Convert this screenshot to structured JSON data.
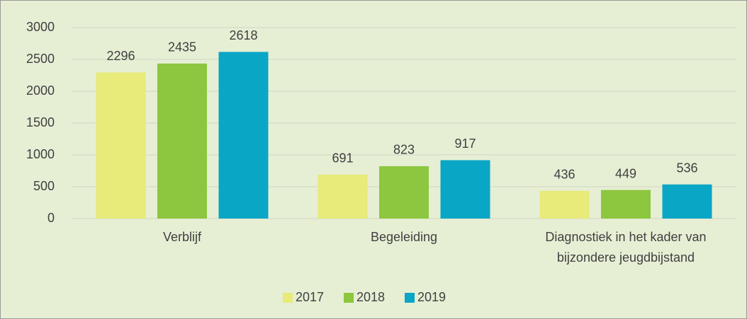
{
  "chart_data": {
    "type": "bar",
    "categories": [
      "Verblijf",
      "Begeleiding",
      "Diagnostiek in het kader van bijzondere jeugdbijstand"
    ],
    "series": [
      {
        "name": "2017",
        "color": "#e8ea7a",
        "values": [
          2296,
          691,
          436
        ]
      },
      {
        "name": "2018",
        "color": "#8dc63f",
        "values": [
          2435,
          823,
          449
        ]
      },
      {
        "name": "2019",
        "color": "#0aa6c6",
        "values": [
          2618,
          917,
          536
        ]
      }
    ],
    "ylim": [
      0,
      3000
    ],
    "yticks": [
      0,
      500,
      1000,
      1500,
      2000,
      2500,
      3000
    ],
    "grid": true,
    "legend": "bottom"
  }
}
